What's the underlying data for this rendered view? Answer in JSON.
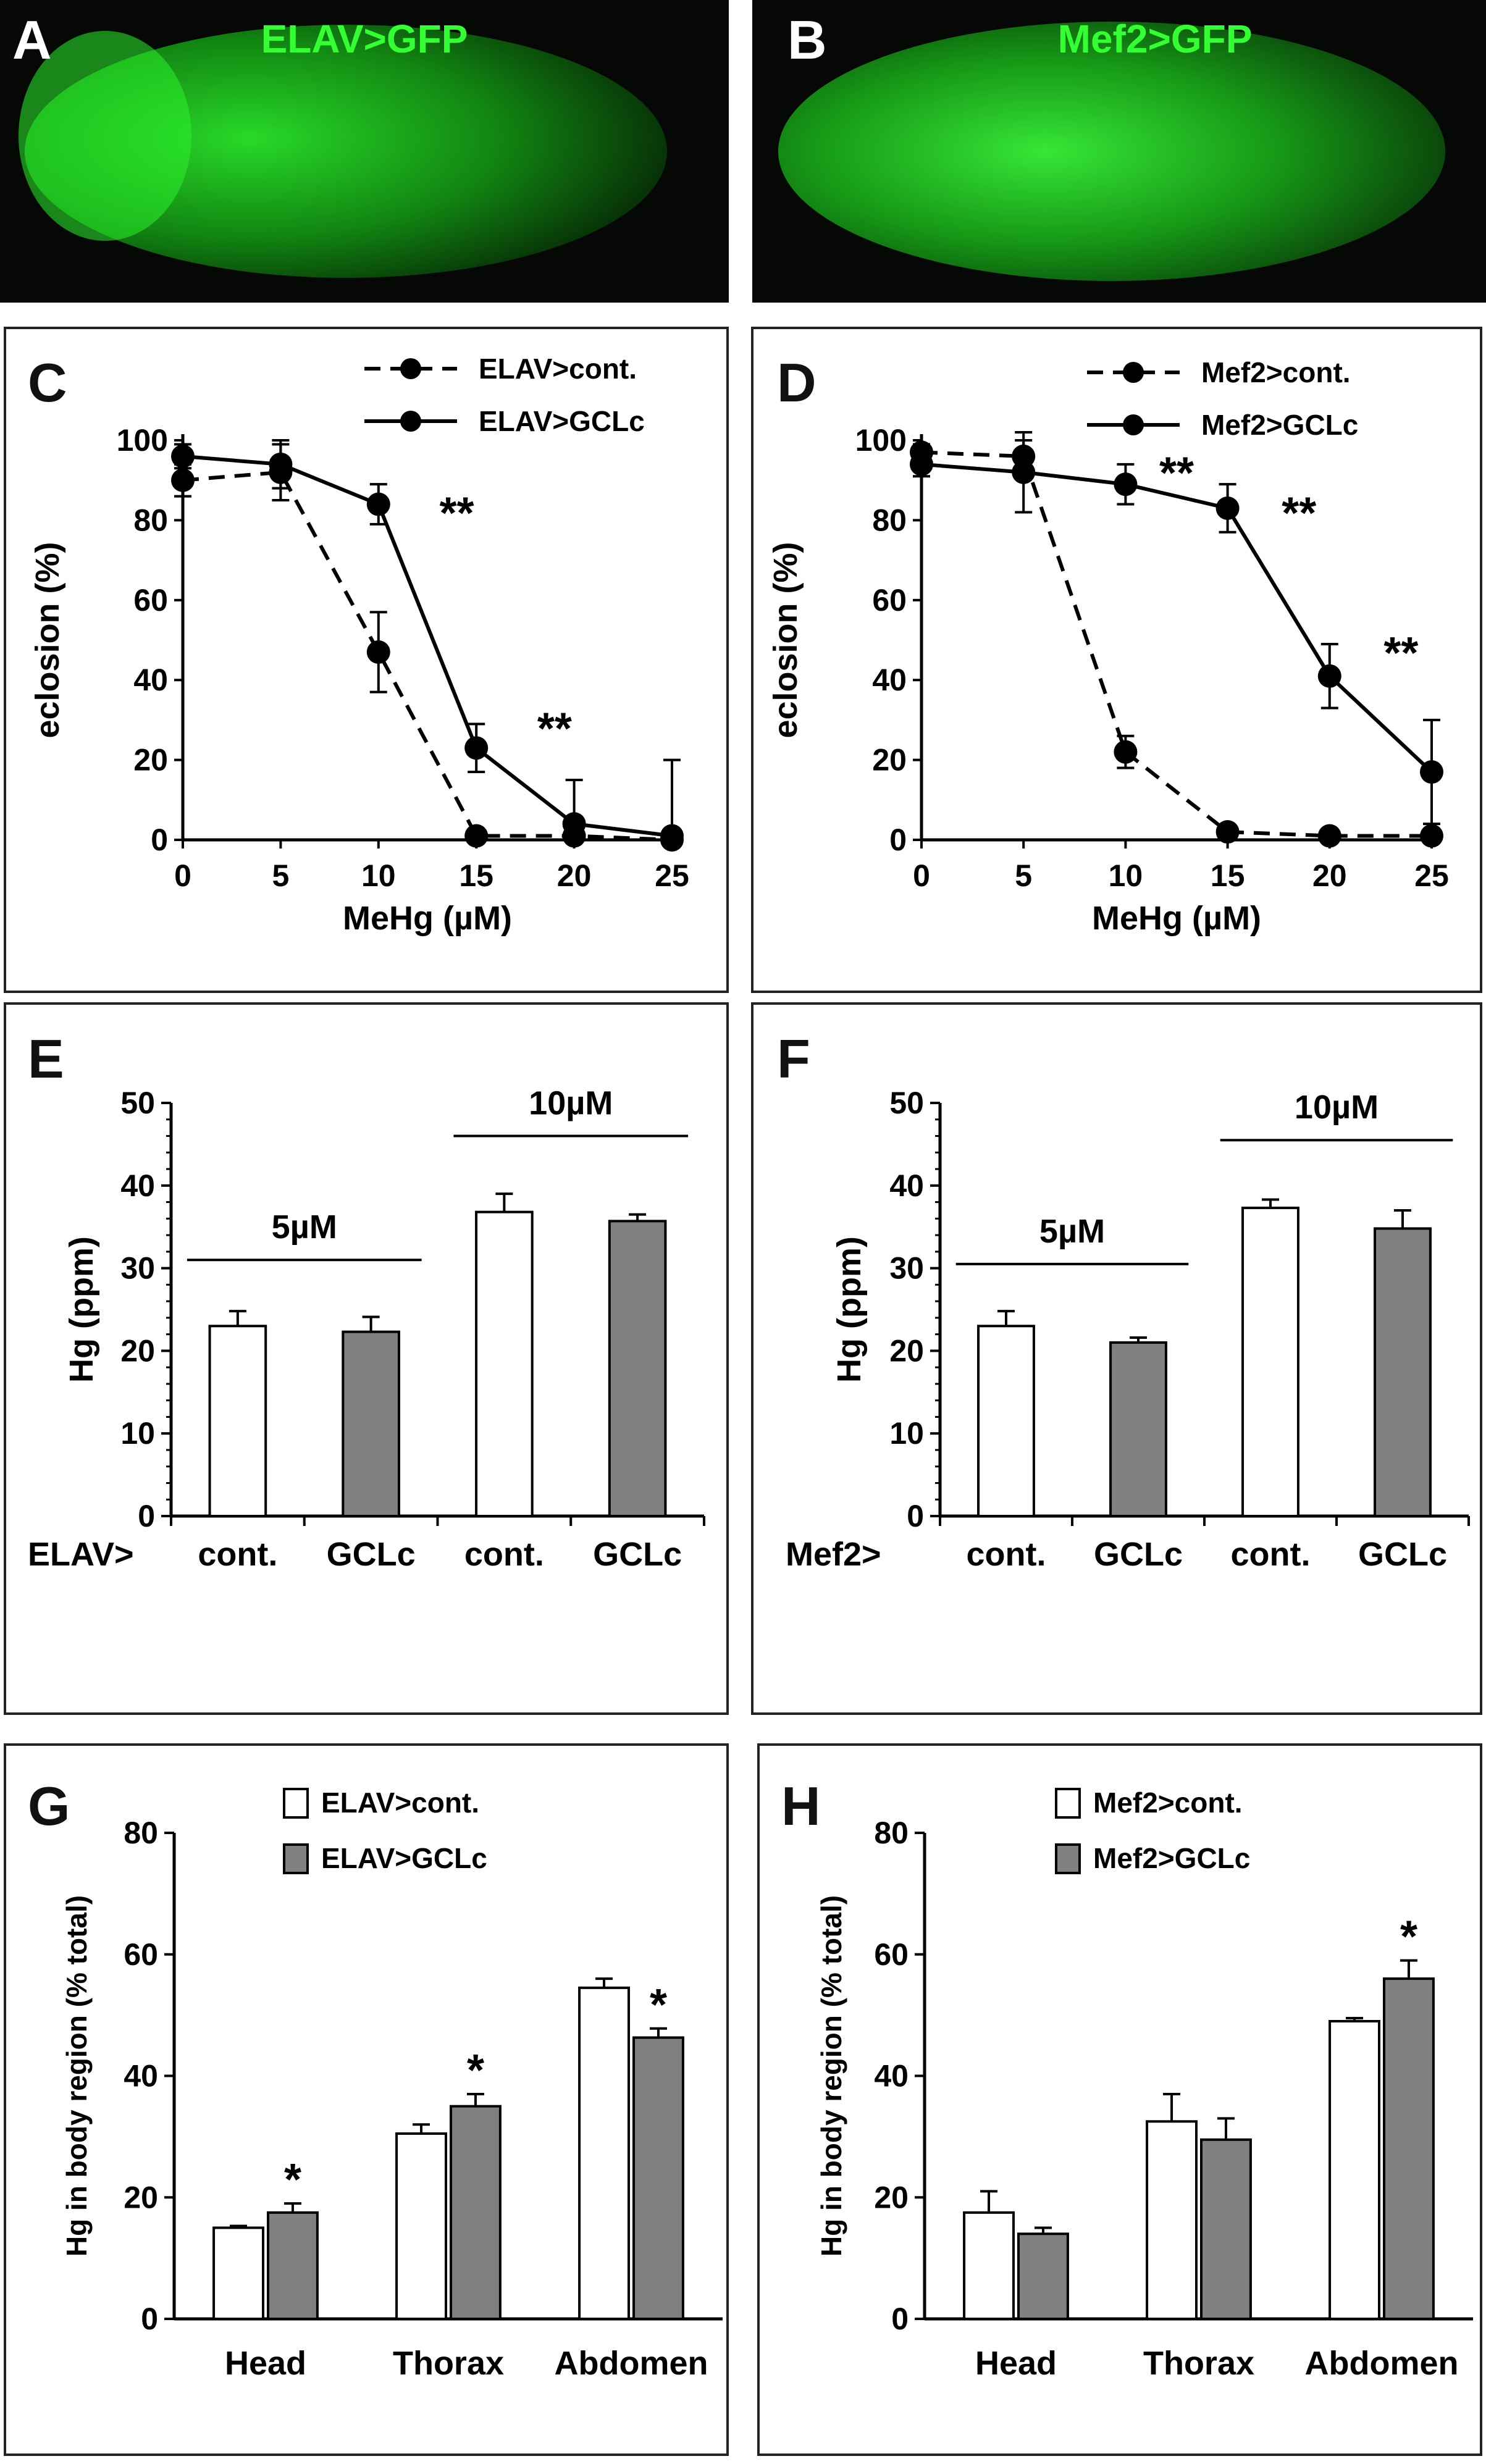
{
  "photos": [
    {
      "letter": "A",
      "title": "ELAV>GFP",
      "alt": "ELAV>GFP fluorescence image of a Drosophila pupa"
    },
    {
      "letter": "B",
      "title": "Mef2>GFP",
      "alt": "Mef2>GFP fluorescence image of a Drosophila pupa"
    }
  ],
  "colors": {
    "cont_bar": "#ffffff",
    "gclc_bar": "#808080",
    "line": "#000000",
    "photo_bg": "#050805",
    "photo_glow": "#1fd81f"
  },
  "chart_data": [
    {
      "panel": "C",
      "type": "line",
      "xlabel": "MeHg (µM)",
      "ylabel": "eclosion (%)",
      "x": [
        0,
        5,
        10,
        15,
        20,
        25
      ],
      "xlim": [
        0,
        25
      ],
      "ylim": [
        0,
        100
      ],
      "xticks": [
        "0",
        "5",
        "10",
        "15",
        "20",
        "25"
      ],
      "yticks": [
        "0",
        "20",
        "40",
        "60",
        "80",
        "100"
      ],
      "series": [
        {
          "name": "ELAV>cont.",
          "style": "dashed",
          "values": [
            90,
            92,
            47,
            1,
            1,
            0
          ],
          "err": [
            4,
            7,
            10,
            1,
            1,
            0
          ]
        },
        {
          "name": "ELAV>GCLc",
          "style": "solid",
          "values": [
            96,
            94,
            84,
            23,
            4,
            1
          ],
          "err": [
            3,
            6,
            5,
            6,
            11,
            19
          ]
        }
      ],
      "annotations": [
        {
          "text": "**",
          "x": 14,
          "y": 78
        },
        {
          "text": "**",
          "x": 19,
          "y": 24
        }
      ]
    },
    {
      "panel": "D",
      "type": "line",
      "xlabel": "MeHg (µM)",
      "ylabel": "eclosion (%)",
      "x": [
        0,
        5,
        10,
        15,
        20,
        25
      ],
      "xlim": [
        0,
        25
      ],
      "ylim": [
        0,
        100
      ],
      "xticks": [
        "0",
        "5",
        "10",
        "15",
        "20",
        "25"
      ],
      "yticks": [
        "0",
        "20",
        "40",
        "60",
        "80",
        "100"
      ],
      "series": [
        {
          "name": "Mef2>cont.",
          "style": "dashed",
          "values": [
            97,
            96,
            22,
            2,
            1,
            1
          ],
          "err": [
            2,
            4,
            4,
            1,
            1,
            1
          ]
        },
        {
          "name": "Mef2>GCLc",
          "style": "solid",
          "values": [
            94,
            92,
            89,
            83,
            41,
            17
          ],
          "err": [
            3,
            10,
            5,
            6,
            8,
            13
          ]
        }
      ],
      "annotations": [
        {
          "text": "**",
          "x": 12.5,
          "y": 88
        },
        {
          "text": "**",
          "x": 18.5,
          "y": 78
        },
        {
          "text": "**",
          "x": 23.5,
          "y": 43
        }
      ]
    },
    {
      "panel": "E",
      "type": "bar",
      "ylabel": "Hg (ppm)",
      "ylim": [
        0,
        50
      ],
      "yticks": [
        "0",
        "10",
        "20",
        "30",
        "40",
        "50"
      ],
      "row_prefix": "ELAV>",
      "categories": [
        "cont.",
        "GCLc",
        "cont.",
        "GCLc"
      ],
      "values": [
        23,
        22.3,
        36.8,
        35.7
      ],
      "err": [
        1.8,
        1.8,
        2.2,
        0.8
      ],
      "fills": [
        "cont",
        "gclc",
        "cont",
        "gclc"
      ],
      "groups": [
        {
          "label": "5µM",
          "y": 31
        },
        {
          "label": "10µM",
          "y": 46
        }
      ]
    },
    {
      "panel": "F",
      "type": "bar",
      "ylabel": "Hg (ppm)",
      "ylim": [
        0,
        50
      ],
      "yticks": [
        "0",
        "10",
        "20",
        "30",
        "40",
        "50"
      ],
      "row_prefix": "Mef2>",
      "categories": [
        "cont.",
        "GCLc",
        "cont.",
        "GCLc"
      ],
      "values": [
        23,
        21,
        37.3,
        34.8
      ],
      "err": [
        1.8,
        0.6,
        1.0,
        2.2
      ],
      "fills": [
        "cont",
        "gclc",
        "cont",
        "gclc"
      ],
      "groups": [
        {
          "label": "5µM",
          "y": 30.5
        },
        {
          "label": "10µM",
          "y": 45.5
        }
      ]
    },
    {
      "panel": "G",
      "type": "bar",
      "ylabel": "Hg in body region (% total)",
      "ylim": [
        0,
        80
      ],
      "yticks": [
        "0",
        "20",
        "40",
        "60",
        "80"
      ],
      "categories": [
        "Head",
        "Thorax",
        "Abdomen"
      ],
      "series": [
        {
          "name": "ELAV>cont.",
          "fill": "cont",
          "values": [
            15,
            30.5,
            54.5
          ],
          "err": [
            0.3,
            1.5,
            1.5
          ]
        },
        {
          "name": "ELAV>GCLc",
          "fill": "gclc",
          "values": [
            17.5,
            35,
            46.3
          ],
          "err": [
            1.5,
            2,
            1.5
          ]
        }
      ],
      "annotations": [
        {
          "text": "*",
          "cat": 0
        },
        {
          "text": "*",
          "cat": 1
        },
        {
          "text": "*",
          "cat": 2
        }
      ]
    },
    {
      "panel": "H",
      "type": "bar",
      "ylabel": "Hg in body region (% total)",
      "ylim": [
        0,
        80
      ],
      "yticks": [
        "0",
        "20",
        "40",
        "60",
        "80"
      ],
      "categories": [
        "Head",
        "Thorax",
        "Abdomen"
      ],
      "series": [
        {
          "name": "Mef2>cont.",
          "fill": "cont",
          "values": [
            17.5,
            32.5,
            49
          ],
          "err": [
            3.5,
            4.5,
            0.5
          ]
        },
        {
          "name": "Mef2>GCLc",
          "fill": "gclc",
          "values": [
            14,
            29.5,
            56
          ],
          "err": [
            1,
            3.5,
            3
          ]
        }
      ],
      "annotations": [
        {
          "text": "*",
          "cat": 2
        }
      ]
    }
  ]
}
